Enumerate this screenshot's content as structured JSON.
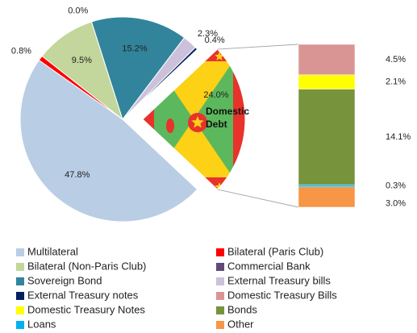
{
  "chart_data": {
    "type": "pie",
    "slices": {
      "categories": [
        "Multilateral",
        "Bilateral (Paris Club)",
        "Bilateral (Non-Paris Club)",
        "Commercial Bank",
        "Sovereign Bond",
        "External Treasury bills",
        "External Treasury notes"
      ],
      "values": [
        47.8,
        0.8,
        9.5,
        0.0,
        15.2,
        2.3,
        0.4
      ],
      "value_labels": [
        "47.8%",
        "0.8%",
        "9.5%",
        "0.0%",
        "15.2%",
        "2.3%",
        "0.4%"
      ],
      "colors": [
        "#b9cde5",
        "#ff0000",
        "#c3d69b",
        "#604a7b",
        "#31849b",
        "#ccc1da",
        "#002060"
      ]
    },
    "detail": {
      "name": "Domestic Debt",
      "value": 24.0,
      "value_label": "24.0%",
      "color": "#e8322c",
      "categories": [
        "Domestic Treasury Bills",
        "Domestic Treasury Notes",
        "Bonds",
        "Loans",
        "Other"
      ],
      "values": [
        4.5,
        2.1,
        14.1,
        0.3,
        3.0
      ],
      "value_labels": [
        "4.5%",
        "2.1%",
        "14.1%",
        "0.3%",
        "3.0%"
      ],
      "colors": [
        "#d99594",
        "#ffff00",
        "#77933c",
        "#00b0f0",
        "#f79646"
      ]
    }
  }
}
